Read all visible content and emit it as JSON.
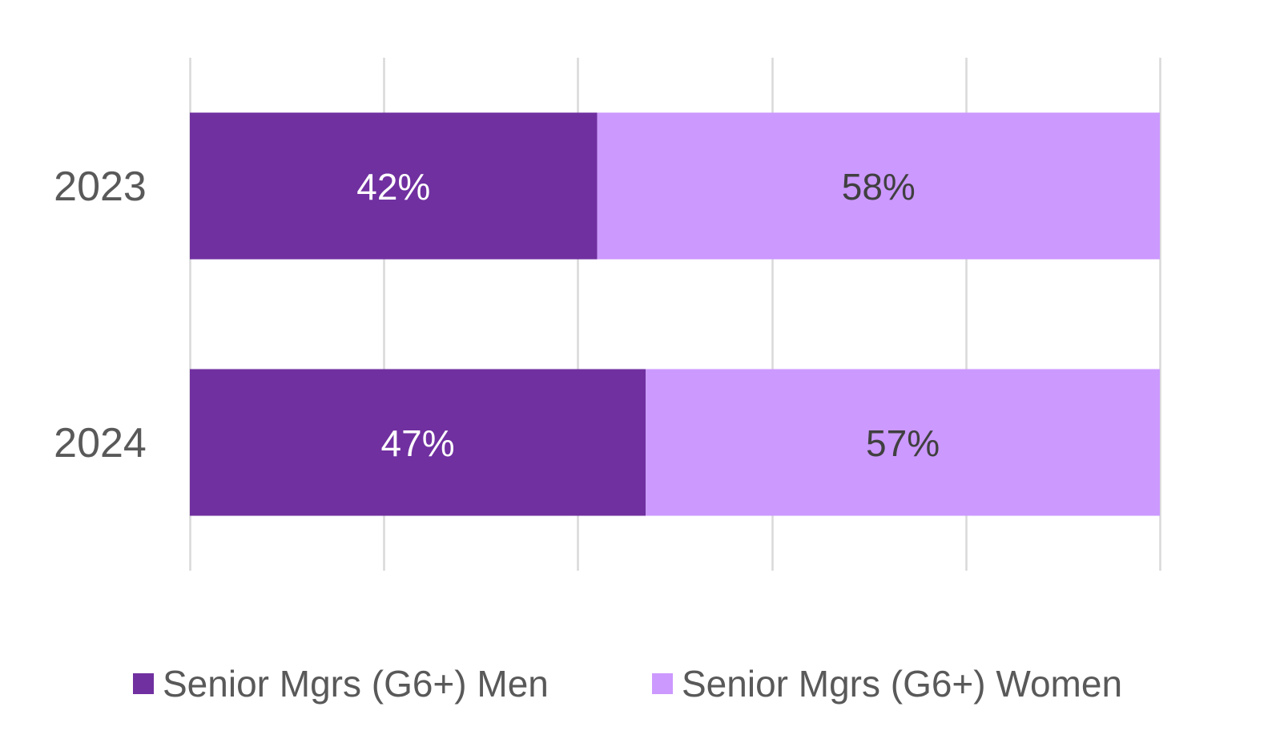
{
  "chart_data": {
    "type": "bar",
    "orientation": "horizontal",
    "stacked": true,
    "categories": [
      "2023",
      "2024"
    ],
    "series": [
      {
        "name": "Senior Mgrs (G6+) Men",
        "values": [
          42,
          47
        ],
        "labels": [
          "42%",
          "47%"
        ],
        "color": "#7030a0",
        "label_color": "#ffffff"
      },
      {
        "name": "Senior Mgrs (G6+) Women",
        "values": [
          58,
          57
        ],
        "labels": [
          "58%",
          "57%"
        ],
        "color": "#cc99ff",
        "label_color": "#404040"
      }
    ],
    "xlim": [
      0,
      100
    ],
    "grid": true,
    "gridline_color": "#d9d9d9",
    "legend_position": "bottom",
    "title": "",
    "xlabel": "",
    "ylabel": ""
  }
}
